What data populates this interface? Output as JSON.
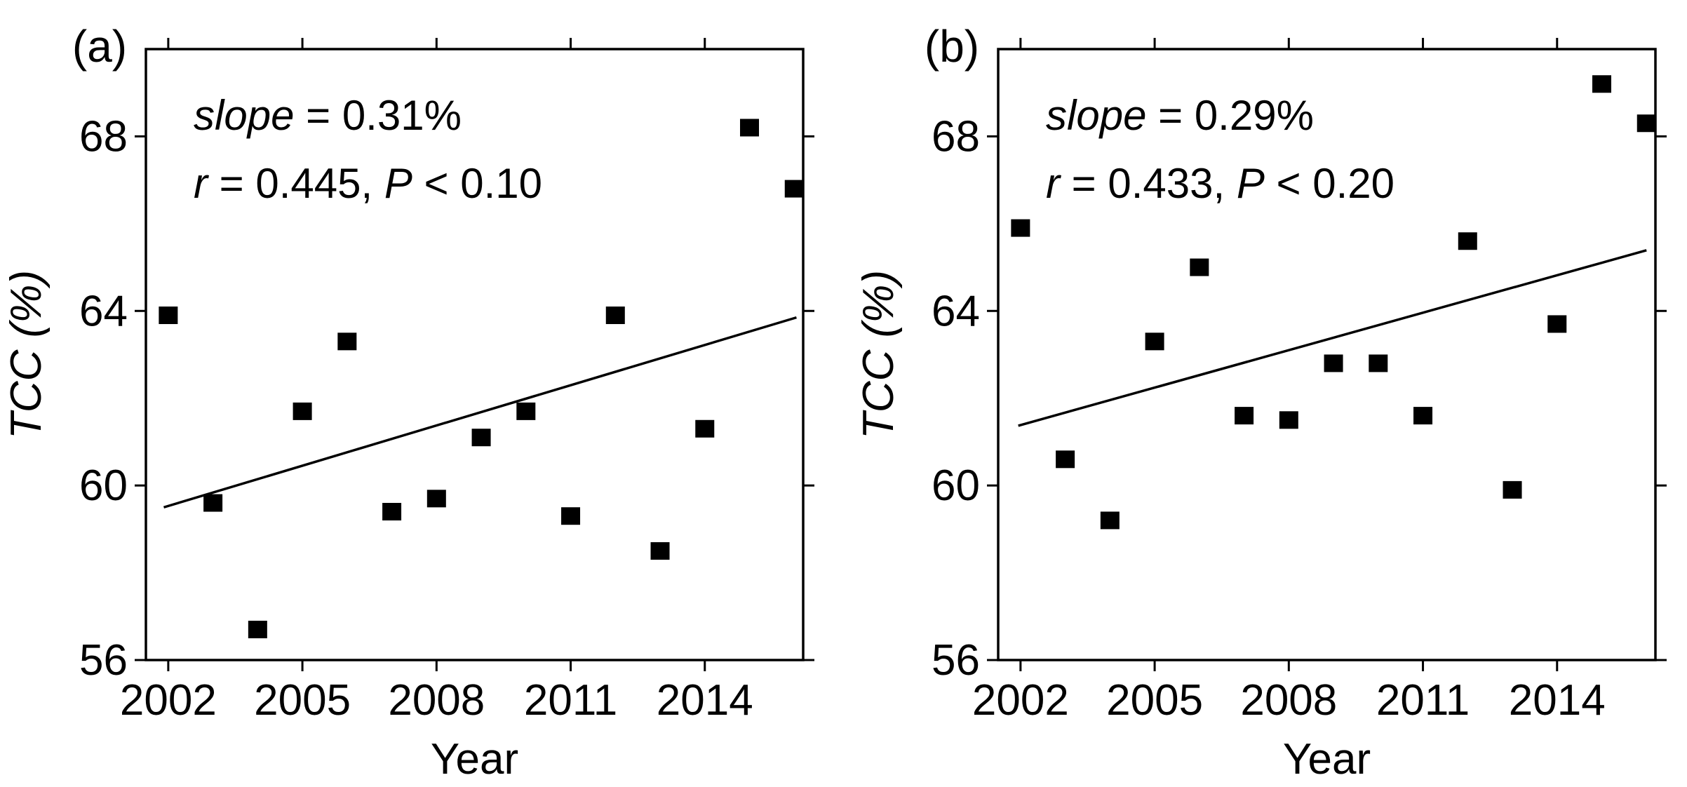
{
  "figure": {
    "background_color": "#ffffff",
    "foreground_color": "#000000"
  },
  "chart_data": [
    {
      "type": "scatter",
      "panel_label": "(a)",
      "title": "",
      "xlabel": "Year",
      "ylabel": "TCC (%)",
      "xlim": [
        2001.5,
        2016.2
      ],
      "ylim": [
        56,
        70
      ],
      "x_ticks": [
        2002,
        2005,
        2008,
        2011,
        2014
      ],
      "y_ticks": [
        56,
        60,
        64,
        68
      ],
      "grid": false,
      "marker": "square",
      "marker_color": "#000000",
      "annotation_lines": [
        {
          "parts": [
            {
              "text": "slope",
              "italic": true
            },
            {
              "text": " = 0.31%",
              "italic": false
            }
          ]
        },
        {
          "parts": [
            {
              "text": "r",
              "italic": true
            },
            {
              "text": " = 0.445, ",
              "italic": false
            },
            {
              "text": "P",
              "italic": true
            },
            {
              "text": " < 0.10",
              "italic": false
            }
          ]
        }
      ],
      "points": [
        [
          2002,
          63.9
        ],
        [
          2003,
          59.6
        ],
        [
          2004,
          56.7
        ],
        [
          2005,
          61.7
        ],
        [
          2006,
          63.3
        ],
        [
          2007,
          59.4
        ],
        [
          2008,
          59.7
        ],
        [
          2009,
          61.1
        ],
        [
          2010,
          61.7
        ],
        [
          2011,
          59.3
        ],
        [
          2012,
          63.9
        ],
        [
          2013,
          58.5
        ],
        [
          2014,
          61.3
        ],
        [
          2015,
          68.2
        ],
        [
          2016,
          66.8
        ]
      ],
      "trend_line": {
        "x1": 2001.9,
        "y1": 59.5,
        "x2": 2016.05,
        "y2": 63.85,
        "color": "#000000"
      }
    },
    {
      "type": "scatter",
      "panel_label": "(b)",
      "title": "",
      "xlabel": "Year",
      "ylabel": "TCC (%)",
      "xlim": [
        2001.5,
        2016.2
      ],
      "ylim": [
        56,
        70
      ],
      "x_ticks": [
        2002,
        2005,
        2008,
        2011,
        2014
      ],
      "y_ticks": [
        56,
        60,
        64,
        68
      ],
      "grid": false,
      "marker": "square",
      "marker_color": "#000000",
      "annotation_lines": [
        {
          "parts": [
            {
              "text": "slope",
              "italic": true
            },
            {
              "text": " = 0.29%",
              "italic": false
            }
          ]
        },
        {
          "parts": [
            {
              "text": "r",
              "italic": true
            },
            {
              "text": " = 0.433, ",
              "italic": false
            },
            {
              "text": "P",
              "italic": true
            },
            {
              "text": " < 0.20",
              "italic": false
            }
          ]
        }
      ],
      "points": [
        [
          2002,
          65.9
        ],
        [
          2003,
          60.6
        ],
        [
          2004,
          59.2
        ],
        [
          2005,
          63.3
        ],
        [
          2006,
          65.0
        ],
        [
          2007,
          61.6
        ],
        [
          2008,
          61.5
        ],
        [
          2009,
          62.8
        ],
        [
          2010,
          62.8
        ],
        [
          2011,
          61.6
        ],
        [
          2012,
          65.6
        ],
        [
          2013,
          59.9
        ],
        [
          2014,
          63.7
        ],
        [
          2015,
          69.2
        ],
        [
          2016,
          68.3
        ]
      ],
      "trend_line": {
        "x1": 2001.95,
        "y1": 61.37,
        "x2": 2016.0,
        "y2": 65.39,
        "color": "#000000"
      }
    }
  ]
}
